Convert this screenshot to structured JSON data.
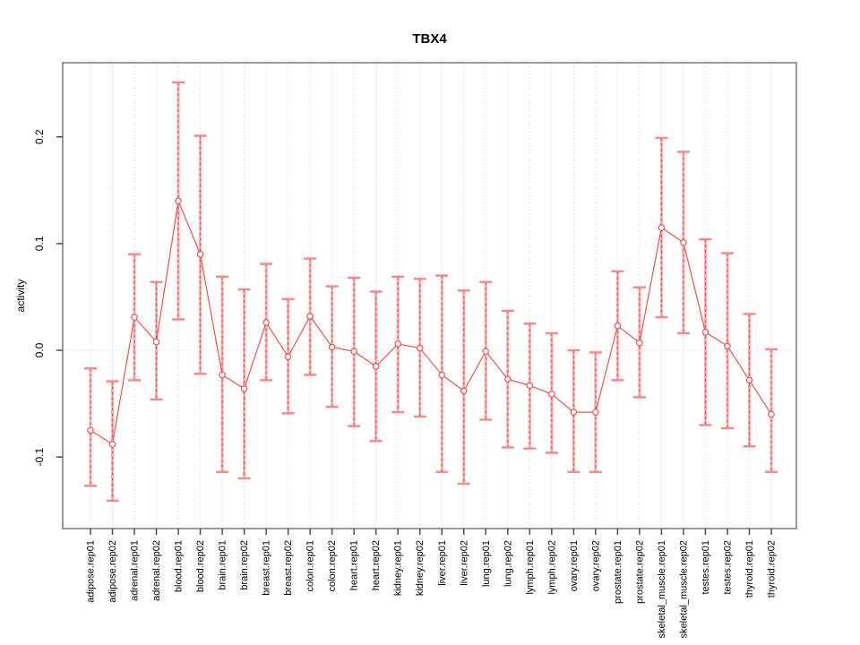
{
  "chart_data": {
    "type": "line",
    "title": "TBX4",
    "xlabel": "",
    "ylabel": "activity",
    "legend": "none",
    "grid": "vertical dotted gridline at every category; dotted horizontal line at y=0",
    "point_style": "open-circle with connecting line and error bars (thick light band, dashed overlay, horizontal caps)",
    "categories": [
      "adipose.rep01",
      "adipose.rep02",
      "adrenal.rep01",
      "adrenal.rep02",
      "blood.rep01",
      "blood.rep02",
      "brain.rep01",
      "brain.rep02",
      "breast.rep01",
      "breast.rep02",
      "colon.rep01",
      "colon.rep02",
      "heart.rep01",
      "heart.rep02",
      "kidney.rep01",
      "kidney.rep02",
      "liver.rep01",
      "liver.rep02",
      "lung.rep01",
      "lung.rep02",
      "lymph.rep01",
      "lymph.rep02",
      "ovary.rep01",
      "ovary.rep02",
      "prostate.rep01",
      "prostate.rep02",
      "skeletal_muscle.rep01",
      "skeletal_muscle.rep02",
      "testes.rep01",
      "testes.rep02",
      "thyroid.rep01",
      "thyroid.rep02"
    ],
    "series": [
      {
        "name": "TBX4 activity",
        "values": [
          -0.075,
          -0.088,
          0.031,
          0.008,
          0.14,
          0.09,
          -0.023,
          -0.036,
          0.026,
          -0.006,
          0.032,
          0.003,
          -0.001,
          -0.015,
          0.006,
          0.002,
          -0.023,
          -0.038,
          -0.001,
          -0.027,
          -0.033,
          -0.041,
          -0.058,
          -0.058,
          0.023,
          0.007,
          0.115,
          0.101,
          0.017,
          0.004,
          -0.028,
          -0.06
        ],
        "lower": [
          -0.127,
          -0.141,
          -0.028,
          -0.046,
          0.029,
          -0.022,
          -0.114,
          -0.12,
          -0.028,
          -0.059,
          -0.023,
          -0.053,
          -0.071,
          -0.085,
          -0.058,
          -0.062,
          -0.114,
          -0.125,
          -0.065,
          -0.091,
          -0.092,
          -0.096,
          -0.114,
          -0.114,
          -0.028,
          -0.044,
          0.031,
          0.016,
          -0.07,
          -0.073,
          -0.09,
          -0.114
        ],
        "upper": [
          -0.017,
          -0.029,
          0.09,
          0.064,
          0.251,
          0.201,
          0.069,
          0.057,
          0.081,
          0.048,
          0.086,
          0.06,
          0.068,
          0.055,
          0.069,
          0.067,
          0.07,
          0.056,
          0.064,
          0.037,
          0.025,
          0.016,
          0.0,
          -0.002,
          0.074,
          0.059,
          0.199,
          0.186,
          0.104,
          0.091,
          0.034,
          0.001
        ]
      }
    ],
    "y_ticks": [
      -0.1,
      0.0,
      0.1,
      0.2
    ],
    "y_tick_labels": [
      "-0.1",
      "0.0",
      "0.1",
      "0.2"
    ],
    "ylim": [
      -0.167,
      0.2695
    ],
    "zero_line": true,
    "colors": {
      "point": "#ee5151",
      "series_line": "#ee5151",
      "error_band": "#f9aeae",
      "error_cap": "#f28b8b",
      "error_dash": "#e14b4b",
      "grid": "#d9d9d9",
      "zero_line": "#d9d9d9",
      "frame": "#9a9a9a",
      "tick": "#4d4d4d",
      "text": "#000000"
    }
  }
}
